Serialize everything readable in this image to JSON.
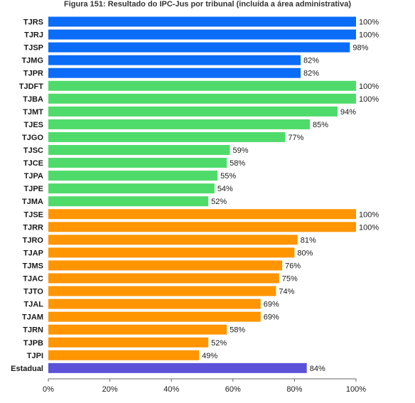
{
  "chart_data": {
    "type": "bar",
    "orientation": "horizontal",
    "title": "Figura 151: Resultado do IPC-Jus por tribunal (incluída a área administrativa)",
    "xlabel": "",
    "ylabel": "",
    "xlim": [
      0,
      100
    ],
    "xticks": [
      "0%",
      "20%",
      "40%",
      "60%",
      "80%",
      "100%"
    ],
    "xtick_values": [
      0,
      20,
      40,
      60,
      80,
      100
    ],
    "grid": false,
    "legend": "none",
    "categories": [
      "TJRS",
      "TJRJ",
      "TJSP",
      "TJMG",
      "TJPR",
      "TJDFT",
      "TJBA",
      "TJMT",
      "TJES",
      "TJGO",
      "TJSC",
      "TJCE",
      "TJPA",
      "TJPE",
      "TJMA",
      "TJSE",
      "TJRR",
      "TJRO",
      "TJAP",
      "TJMS",
      "TJAC",
      "TJTO",
      "TJAL",
      "TJAM",
      "TJRN",
      "TJPB",
      "TJPI",
      "Estadual"
    ],
    "values": [
      100,
      100,
      98,
      82,
      82,
      100,
      100,
      94,
      85,
      77,
      59,
      58,
      55,
      54,
      52,
      100,
      100,
      81,
      80,
      76,
      75,
      74,
      69,
      69,
      58,
      52,
      49,
      84
    ],
    "value_labels": [
      "100%",
      "100%",
      "98%",
      "82%",
      "82%",
      "100%",
      "100%",
      "94%",
      "85%",
      "77%",
      "59%",
      "58%",
      "55%",
      "54%",
      "52%",
      "100%",
      "100%",
      "81%",
      "80%",
      "76%",
      "75%",
      "74%",
      "69%",
      "69%",
      "58%",
      "52%",
      "49%",
      "84%"
    ],
    "groups": [
      "grande",
      "grande",
      "grande",
      "grande",
      "grande",
      "medio",
      "medio",
      "medio",
      "medio",
      "medio",
      "medio",
      "medio",
      "medio",
      "medio",
      "medio",
      "pequeno",
      "pequeno",
      "pequeno",
      "pequeno",
      "pequeno",
      "pequeno",
      "pequeno",
      "pequeno",
      "pequeno",
      "pequeno",
      "pequeno",
      "pequeno",
      "estadual"
    ],
    "group_colors": {
      "grande": "#0a6cf7",
      "medio": "#4fdb6a",
      "pequeno": "#ff9500",
      "estadual": "#5b52d8"
    }
  }
}
